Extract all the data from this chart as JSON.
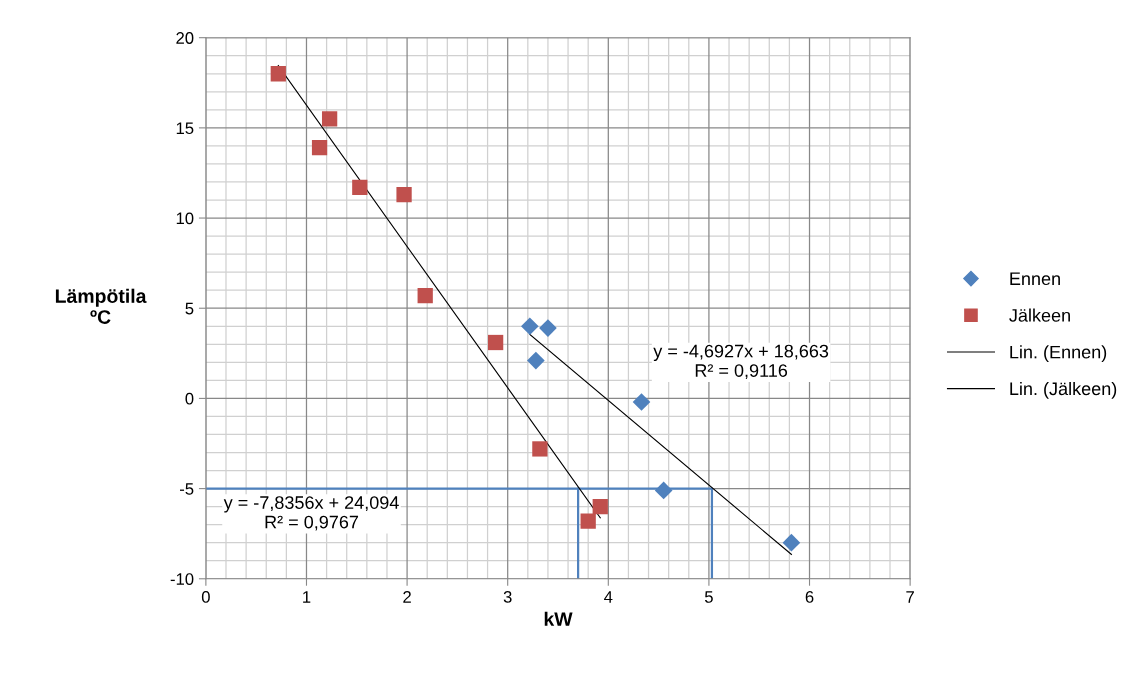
{
  "chart_data": {
    "type": "scatter",
    "xlabel": "kW",
    "ylabel": "Lämpötila\nºC",
    "xlim": [
      0,
      7
    ],
    "ylim": [
      -10,
      20
    ],
    "xticks": [
      0,
      1,
      2,
      3,
      4,
      5,
      6,
      7
    ],
    "yticks": [
      -10,
      -5,
      0,
      5,
      10,
      15,
      20
    ],
    "grid": true,
    "legend": "right",
    "series": [
      {
        "name": "Ennen",
        "marker": "diamond",
        "color": "#4f81bd",
        "x": [
          3.22,
          3.28,
          3.4,
          4.33,
          4.55,
          5.82
        ],
        "values": [
          4.0,
          2.1,
          3.9,
          -0.2,
          -5.1,
          -8.0
        ]
      },
      {
        "name": "Jälkeen",
        "marker": "square",
        "color": "#c0504d",
        "x": [
          0.72,
          1.13,
          1.23,
          1.53,
          1.97,
          2.18,
          2.88,
          3.32,
          3.8,
          3.92
        ],
        "values": [
          18.0,
          13.9,
          15.5,
          11.7,
          11.3,
          5.7,
          3.1,
          -2.8,
          -6.8,
          -6.0
        ]
      },
      {
        "name": "Lin. (Ennen)",
        "type": "line",
        "color": "#000000",
        "x": [
          3.22,
          5.82
        ],
        "values": [
          3.55,
          -8.65
        ]
      },
      {
        "name": "Lin. (Jälkeen)",
        "type": "line",
        "color": "#000000",
        "x": [
          0.72,
          3.92
        ],
        "values": [
          18.45,
          -6.62
        ]
      },
      {
        "type": "line",
        "color": "#4f81bd",
        "x": [
          0,
          5.03,
          5.03
        ],
        "values": [
          -5,
          -5,
          -10
        ]
      },
      {
        "type": "line",
        "color": "#4f81bd",
        "x": [
          3.7,
          3.7
        ],
        "values": [
          -5,
          -10
        ]
      }
    ],
    "annotations": [
      "y = -4,6927x + 18,663\nR² = 0,9116",
      "y = -7,8356x + 24,094\nR² = 0,9767"
    ]
  }
}
